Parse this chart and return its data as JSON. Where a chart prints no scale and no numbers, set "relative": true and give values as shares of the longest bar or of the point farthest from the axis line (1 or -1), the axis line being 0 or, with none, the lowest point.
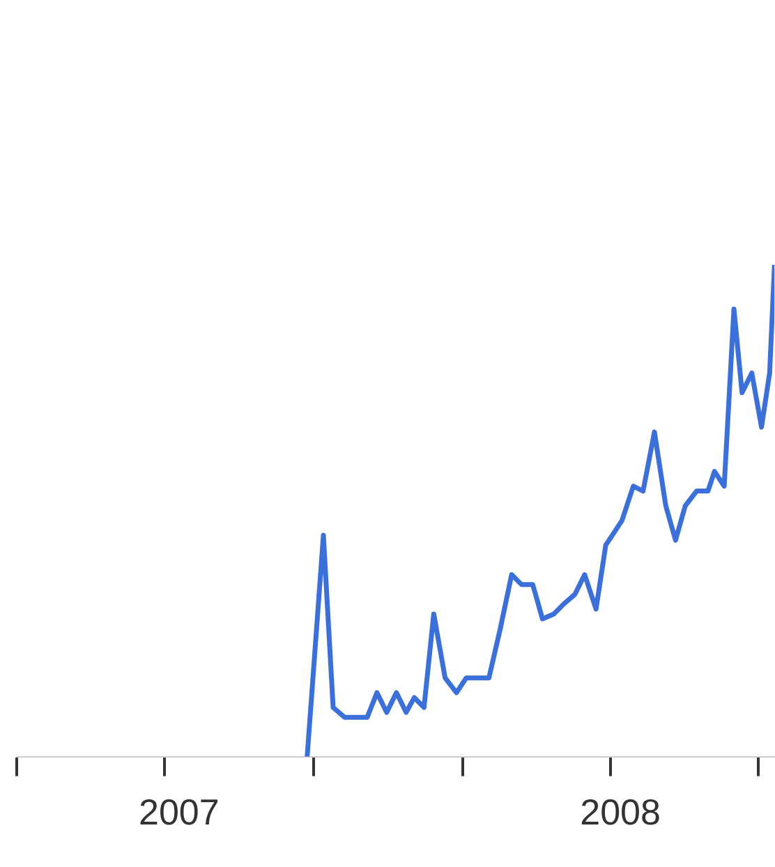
{
  "chart_data": {
    "type": "line",
    "relative": true,
    "marker": "none",
    "line_style": "solid",
    "legend": false,
    "xlim": [
      "2007-04-01",
      "2008-07-11"
    ],
    "xticks": [
      {
        "value": "2007-04-01",
        "label": null
      },
      {
        "value": "2007-07-01",
        "label": null
      },
      {
        "value": "2007-07-10",
        "label": "2007"
      },
      {
        "value": "2007-10-01",
        "label": null
      },
      {
        "value": "2008-01-01",
        "label": null
      },
      {
        "value": "2008-04-01",
        "label": null
      },
      {
        "value": "2008-04-07",
        "label": "2008"
      },
      {
        "value": "2008-07-01",
        "label": null
      }
    ],
    "series": [
      {
        "color": "#3b6fd9",
        "x": [
          "2007-09-27",
          "2007-10-07",
          "2007-10-13",
          "2007-10-20",
          "2007-10-28",
          "2007-11-03",
          "2007-11-09",
          "2007-11-15",
          "2007-11-21",
          "2007-11-27",
          "2007-12-02",
          "2007-12-08",
          "2007-12-14",
          "2007-12-21",
          "2007-12-28",
          "2008-01-03",
          "2008-01-10",
          "2008-01-17",
          "2008-01-24",
          "2008-01-31",
          "2008-02-06",
          "2008-02-13",
          "2008-02-19",
          "2008-02-26",
          "2008-03-03",
          "2008-03-10",
          "2008-03-16",
          "2008-03-23",
          "2008-03-29",
          "2008-04-02",
          "2008-04-08",
          "2008-04-15",
          "2008-04-21",
          "2008-04-28",
          "2008-05-05",
          "2008-05-11",
          "2008-05-17",
          "2008-05-24",
          "2008-05-31",
          "2008-06-04",
          "2008-06-10",
          "2008-06-16",
          "2008-06-21",
          "2008-06-27",
          "2008-07-03",
          "2008-07-08",
          "2008-07-11"
        ],
        "values": [
          0,
          0.45,
          0.1,
          0.08,
          0.08,
          0.08,
          0.13,
          0.09,
          0.13,
          0.09,
          0.12,
          0.1,
          0.29,
          0.16,
          0.13,
          0.16,
          0.16,
          0.16,
          0.26,
          0.37,
          0.35,
          0.35,
          0.28,
          0.29,
          0.31,
          0.33,
          0.37,
          0.3,
          0.43,
          0.45,
          0.48,
          0.55,
          0.54,
          0.66,
          0.51,
          0.44,
          0.51,
          0.54,
          0.54,
          0.58,
          0.55,
          0.91,
          0.74,
          0.78,
          0.67,
          0.78,
          1.0
        ]
      }
    ]
  }
}
